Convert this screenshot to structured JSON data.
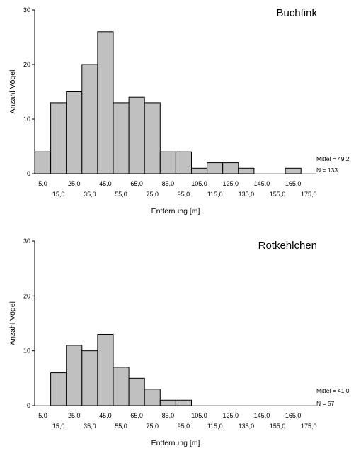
{
  "chart_data": [
    {
      "type": "bar",
      "title": "Buchfink",
      "ylabel": "Anzahl Vögel",
      "xlabel": "Entfernung [m]",
      "ylim": [
        0,
        30
      ],
      "yticks": [
        "0",
        "10",
        "20",
        "30"
      ],
      "xticks_upper": [
        "5,0",
        "25,0",
        "45,0",
        "65,0",
        "85,0",
        "105,0",
        "125,0",
        "145,0",
        "165,0"
      ],
      "xticks_lower": [
        "15,0",
        "35,0",
        "55,0",
        "75,0",
        "95,0",
        "115,0",
        "135,0",
        "155,0",
        "175,0"
      ],
      "bin_centers": [
        5,
        15,
        25,
        35,
        45,
        55,
        65,
        75,
        85,
        95,
        105,
        115,
        125,
        135,
        145,
        155,
        165,
        175
      ],
      "values": [
        4,
        13,
        15,
        20,
        26,
        13,
        14,
        13,
        4,
        4,
        1,
        2,
        2,
        1,
        0,
        0,
        1,
        0
      ],
      "stats": {
        "mean": "Mittel = 49,2",
        "n": "N = 133"
      },
      "bar_color": "#c0c0c0"
    },
    {
      "type": "bar",
      "title": "Rotkehlchen",
      "ylabel": "Anzahl Vögel",
      "xlabel": "Entfernung [m]",
      "ylim": [
        0,
        30
      ],
      "yticks": [
        "0",
        "10",
        "20",
        "30"
      ],
      "xticks_upper": [
        "5,0",
        "25,0",
        "45,0",
        "65,0",
        "85,0",
        "105,0",
        "125,0",
        "145,0",
        "165,0"
      ],
      "xticks_lower": [
        "15,0",
        "35,0",
        "55,0",
        "75,0",
        "95,0",
        "115,0",
        "135,0",
        "155,0",
        "175,0"
      ],
      "bin_centers": [
        5,
        15,
        25,
        35,
        45,
        55,
        65,
        75,
        85,
        95,
        105,
        115,
        125,
        135,
        145,
        155,
        165,
        175
      ],
      "values": [
        0,
        6,
        11,
        10,
        13,
        7,
        5,
        3,
        1,
        1,
        0,
        0,
        0,
        0,
        0,
        0,
        0,
        0
      ],
      "stats": {
        "mean": "Mittel = 41,0",
        "n": "N = 57"
      },
      "bar_color": "#c0c0c0"
    }
  ]
}
